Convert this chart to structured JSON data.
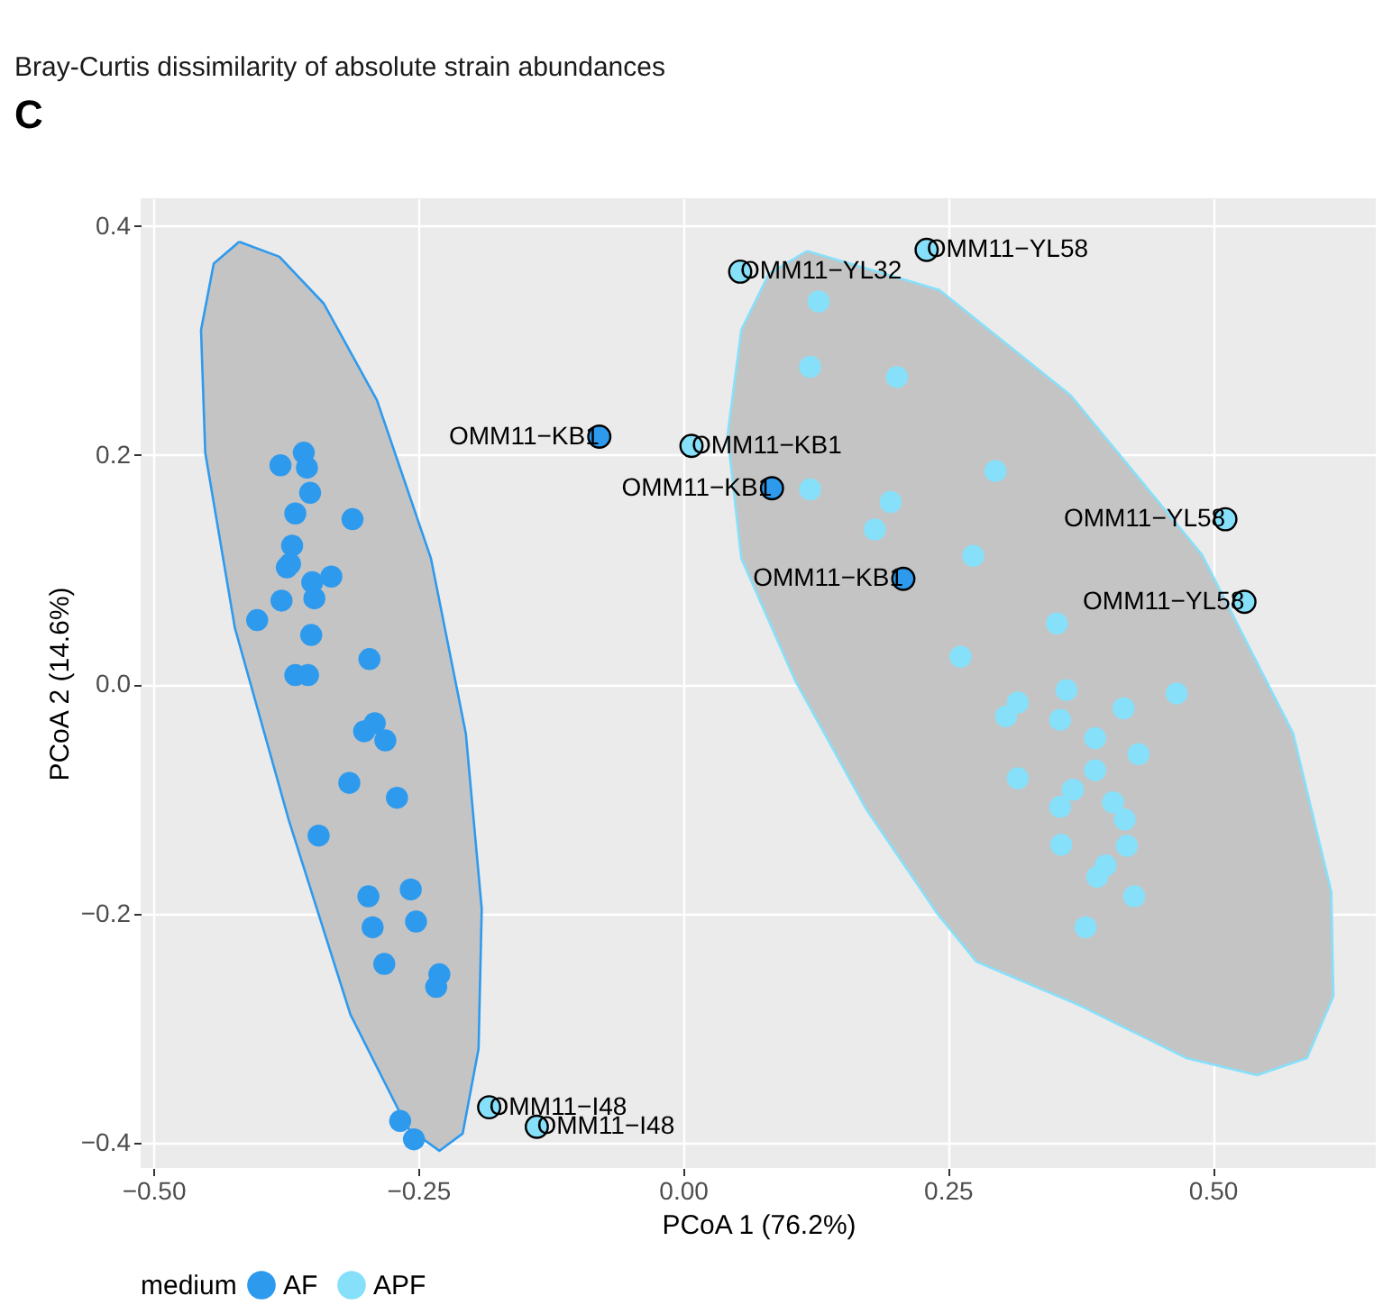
{
  "chart_data": {
    "type": "scatter",
    "title": "Bray-Curtis dissimilarity of absolute strain abundances",
    "xlabel": "PCoA 1 (76.2%)",
    "ylabel": "PCoA 2 (14.6%)",
    "legend_title": "medium",
    "xlim": [
      -0.512,
      0.654
    ],
    "ylim": [
      -0.422,
      0.424
    ],
    "xticks": [
      {
        "value": -0.5,
        "label": "−0.50"
      },
      {
        "value": -0.25,
        "label": "−0.25"
      },
      {
        "value": 0,
        "label": "0.00"
      },
      {
        "value": 0.25,
        "label": "0.25"
      },
      {
        "value": 0.5,
        "label": "0.50"
      }
    ],
    "yticks": [
      {
        "value": -0.4,
        "label": "−0.4"
      },
      {
        "value": -0.2,
        "label": "−0.2"
      },
      {
        "value": 0,
        "label": "0.0"
      },
      {
        "value": 0.2,
        "label": "0.2"
      },
      {
        "value": 0.4,
        "label": "0.4"
      }
    ],
    "grid": true,
    "legend": "bottom",
    "series": [
      {
        "type": "area",
        "color": "#2e9aee",
        "x": [
          -0.419,
          -0.381,
          -0.339,
          -0.289,
          -0.238,
          -0.205,
          -0.19,
          -0.193,
          -0.208,
          -0.23,
          -0.26,
          -0.314,
          -0.372,
          -0.423,
          -0.451,
          -0.455,
          -0.443,
          -0.419
        ],
        "values": [
          0.386,
          0.373,
          0.332,
          0.248,
          0.11,
          -0.043,
          -0.196,
          -0.318,
          -0.392,
          -0.407,
          -0.387,
          -0.288,
          -0.119,
          0.049,
          0.202,
          0.309,
          0.367,
          0.386
        ]
      },
      {
        "type": "area",
        "color": "#87e0fa",
        "x": [
          0.117,
          0.242,
          0.366,
          0.49,
          0.576,
          0.612,
          0.614,
          0.589,
          0.542,
          0.475,
          0.374,
          0.277,
          0.24,
          0.173,
          0.106,
          0.055,
          0.042,
          0.055,
          0.081,
          0.117
        ],
        "values": [
          0.378,
          0.344,
          0.252,
          0.113,
          -0.043,
          -0.181,
          -0.272,
          -0.326,
          -0.341,
          -0.326,
          -0.28,
          -0.242,
          -0.2,
          -0.109,
          0.003,
          0.11,
          0.217,
          0.309,
          0.358,
          0.378
        ]
      },
      {
        "name": "AF",
        "color": "#2e9aee",
        "marker": "circle",
        "x": [
          -0.38,
          -0.358,
          -0.355,
          -0.352,
          -0.366,
          -0.312,
          -0.369,
          -0.374,
          -0.371,
          -0.35,
          -0.332,
          -0.348,
          -0.379,
          -0.402,
          -0.351,
          -0.296,
          -0.366,
          -0.354,
          -0.291,
          -0.301,
          -0.281,
          -0.315,
          -0.27,
          -0.344,
          -0.297,
          -0.257,
          -0.293,
          -0.252,
          -0.282,
          -0.23,
          -0.233,
          -0.267,
          -0.254,
          -0.079,
          0.084,
          0.208
        ],
        "values": [
          0.191,
          0.202,
          0.189,
          0.167,
          0.149,
          0.144,
          0.121,
          0.102,
          0.105,
          0.089,
          0.094,
          0.075,
          0.073,
          0.056,
          0.043,
          0.022,
          0.008,
          0.008,
          -0.034,
          -0.041,
          -0.049,
          -0.086,
          -0.099,
          -0.132,
          -0.185,
          -0.179,
          -0.212,
          -0.207,
          -0.244,
          -0.253,
          -0.264,
          -0.381,
          -0.397,
          0.216,
          0.171,
          0.092
        ]
      },
      {
        "name": "APF",
        "color": "#87e0fa",
        "marker": "circle",
        "x": [
          0.128,
          0.12,
          0.202,
          0.12,
          0.196,
          0.181,
          0.295,
          0.274,
          0.353,
          0.262,
          0.362,
          0.316,
          0.305,
          0.356,
          0.416,
          0.466,
          0.389,
          0.43,
          0.316,
          0.389,
          0.368,
          0.356,
          0.406,
          0.417,
          0.419,
          0.357,
          0.399,
          0.391,
          0.426,
          0.38,
          0.054,
          0.23,
          0.008,
          0.512,
          0.53,
          -0.183,
          -0.138
        ],
        "values": [
          0.334,
          0.277,
          0.268,
          0.17,
          0.159,
          0.135,
          0.186,
          0.112,
          0.053,
          0.024,
          -0.005,
          -0.016,
          -0.028,
          -0.031,
          -0.021,
          -0.008,
          -0.047,
          -0.061,
          -0.082,
          -0.075,
          -0.092,
          -0.107,
          -0.103,
          -0.118,
          -0.141,
          -0.14,
          -0.158,
          -0.168,
          -0.185,
          -0.212,
          0.36,
          0.379,
          0.208,
          0.144,
          0.072,
          -0.369,
          -0.386
        ]
      }
    ],
    "annotations": [
      "C",
      {
        "text": "OMM11−KB1",
        "x": -0.079,
        "y": 0.216
      },
      {
        "text": "OMM11−KB1",
        "x": 0.084,
        "y": 0.171
      },
      {
        "text": "OMM11−KB1",
        "x": 0.208,
        "y": 0.092
      },
      {
        "text": "OMM11−YL32",
        "x": 0.054,
        "y": 0.36
      },
      {
        "text": "OMM11−YL58",
        "x": 0.23,
        "y": 0.379
      },
      {
        "text": "OMM11−KB1",
        "x": 0.008,
        "y": 0.208
      },
      {
        "text": "OMM11−YL58",
        "x": 0.512,
        "y": 0.144
      },
      {
        "text": "OMM11−YL58",
        "x": 0.53,
        "y": 0.072
      },
      {
        "text": "OMM11−I48",
        "x": -0.183,
        "y": -0.369
      },
      {
        "text": "OMM11−I48",
        "x": -0.138,
        "y": -0.386
      }
    ]
  }
}
